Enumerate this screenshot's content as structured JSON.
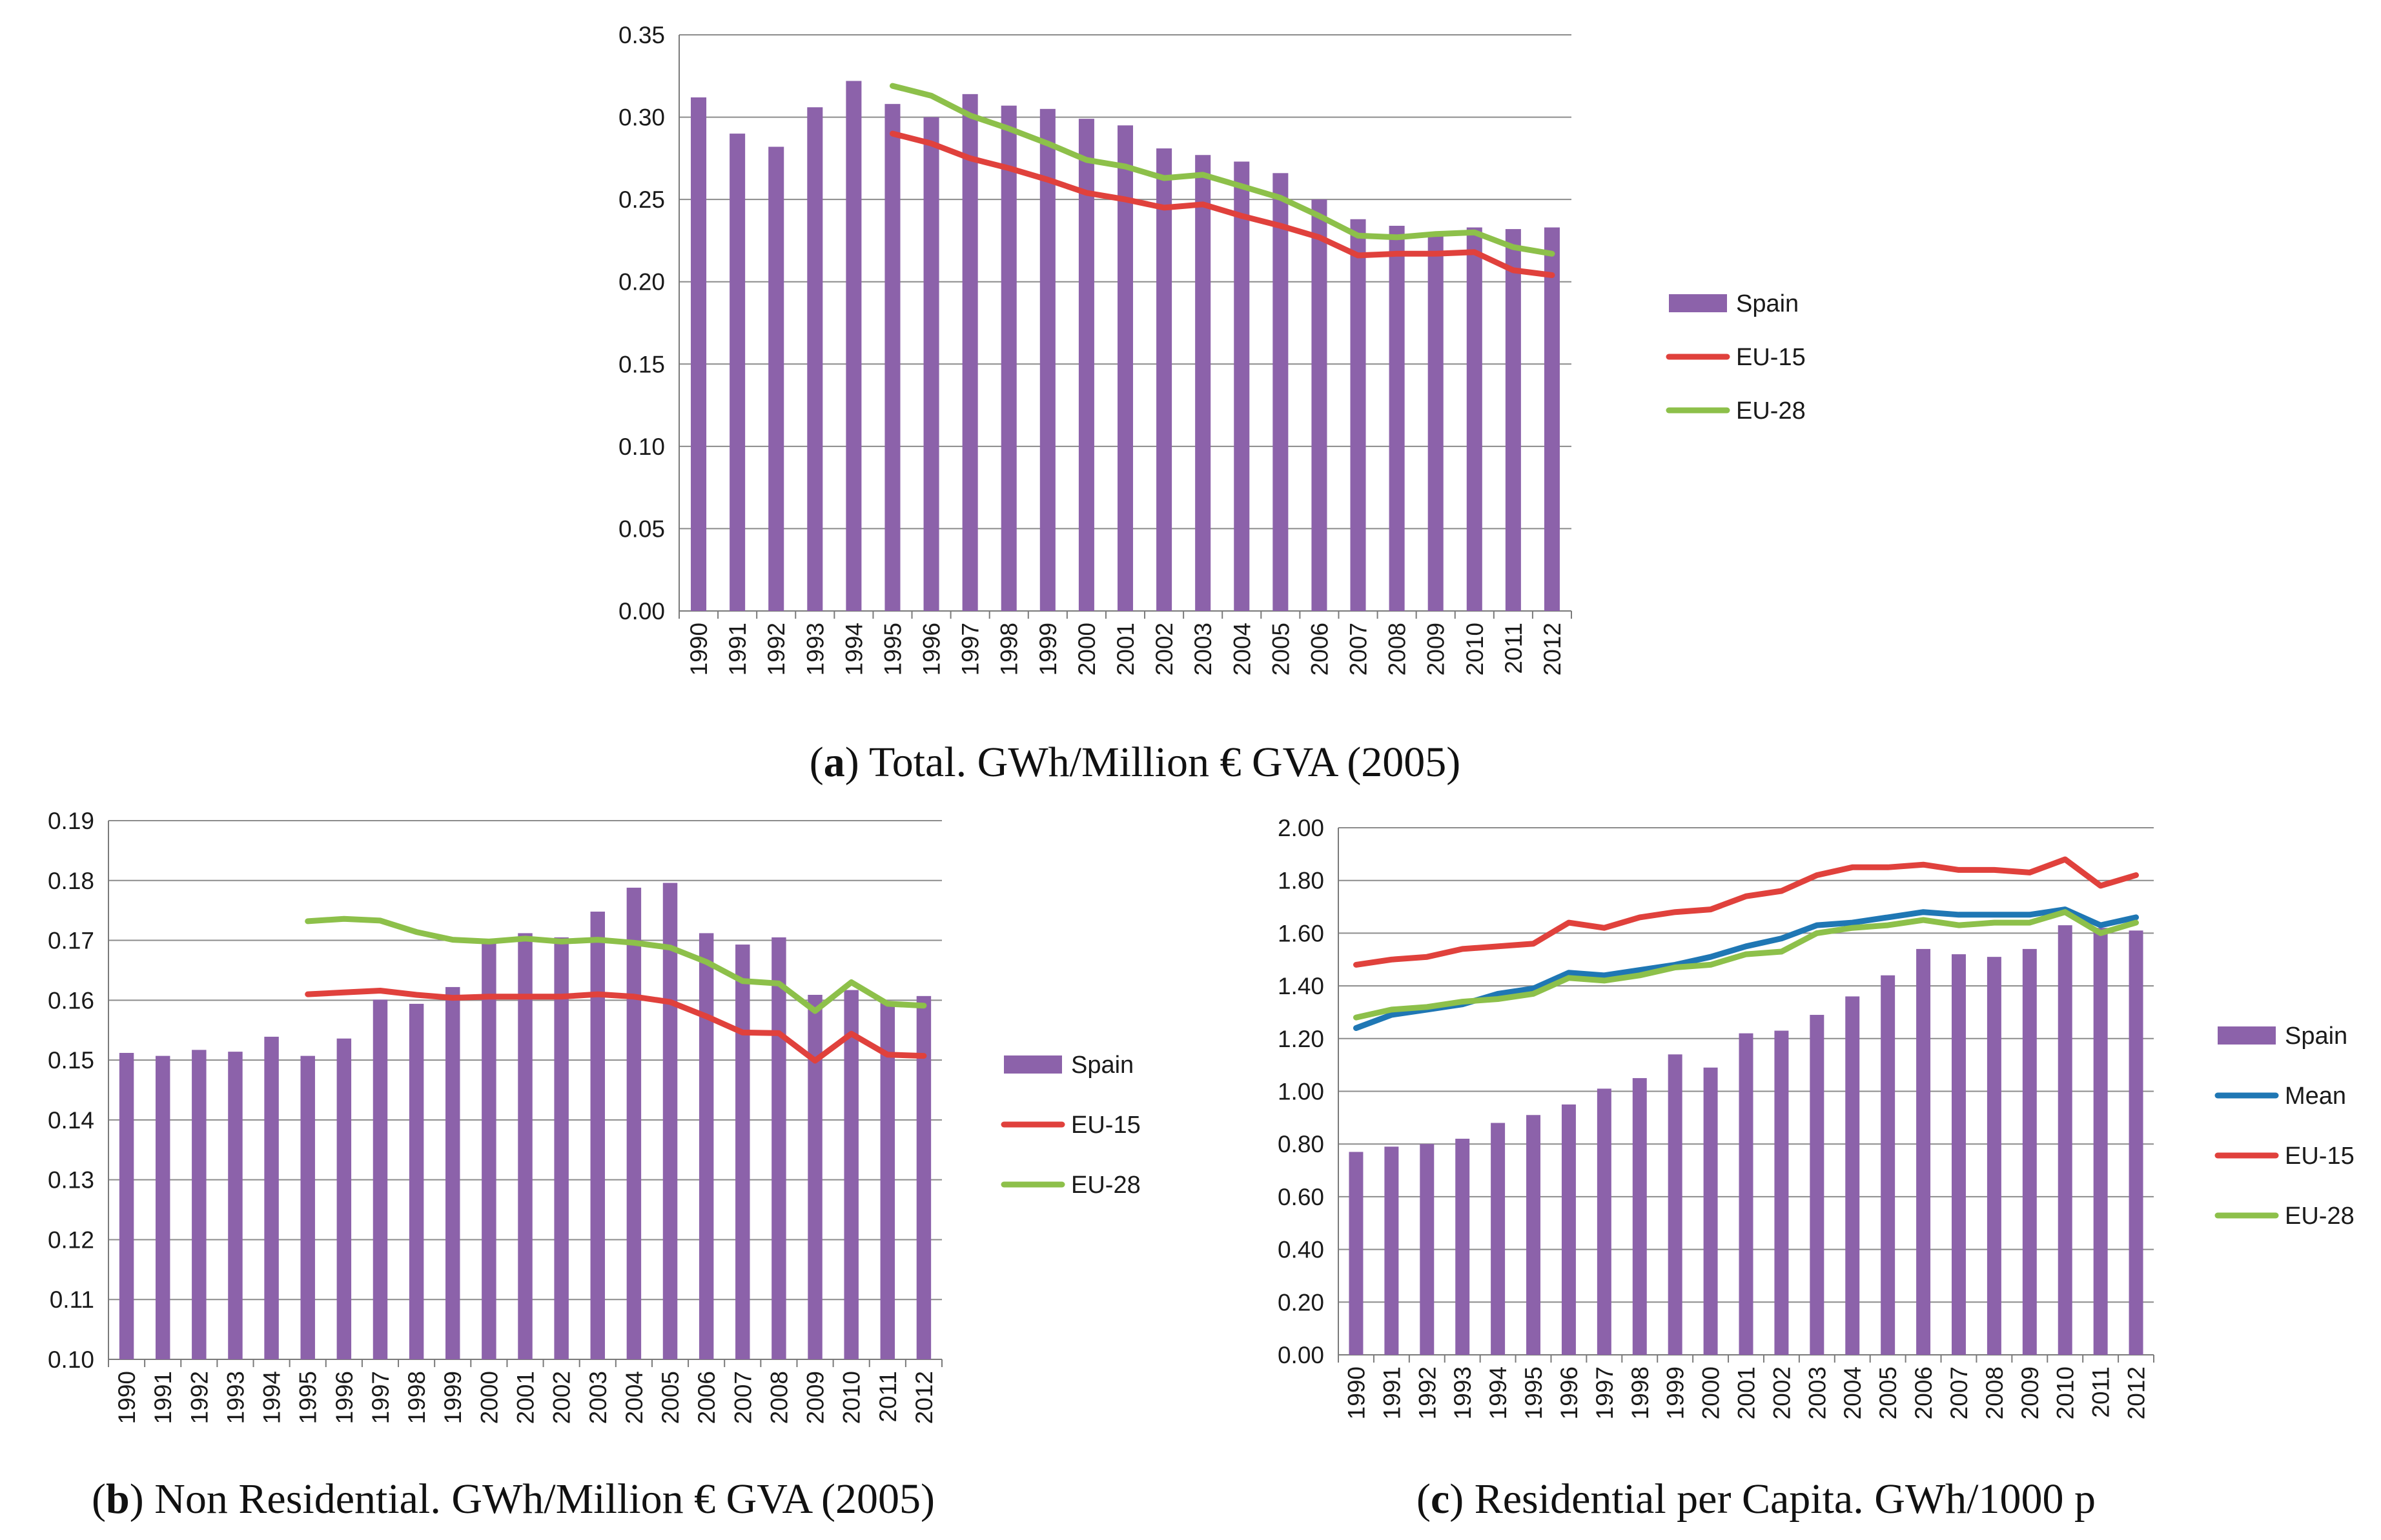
{
  "colors": {
    "spain": "#8c62aa",
    "eu15": "#e0413c",
    "eu28": "#8dc04a",
    "mean": "#1f77b4",
    "grid": "#8c8c8c"
  },
  "chart_data": [
    {
      "id": "a",
      "type": "bar+line",
      "caption_letter": "a",
      "caption_text": "Total. GWh/Million € GVA (2005)",
      "categories": [
        "1990",
        "1991",
        "1992",
        "1993",
        "1994",
        "1995",
        "1996",
        "1997",
        "1998",
        "1999",
        "2000",
        "2001",
        "2002",
        "2003",
        "2004",
        "2005",
        "2006",
        "2007",
        "2008",
        "2009",
        "2010",
        "2011",
        "2012"
      ],
      "ylim": [
        0,
        0.35
      ],
      "yticks": [
        "0.00",
        "0.05",
        "0.10",
        "0.15",
        "0.20",
        "0.25",
        "0.30",
        "0.35"
      ],
      "legend": [
        "Spain",
        "EU-15",
        "EU-28"
      ],
      "series": [
        {
          "name": "Spain",
          "kind": "bar",
          "color_key": "spain",
          "values": [
            0.312,
            0.29,
            0.282,
            0.306,
            0.322,
            0.308,
            0.3,
            0.314,
            0.307,
            0.305,
            0.299,
            0.295,
            0.281,
            0.277,
            0.273,
            0.266,
            0.25,
            0.238,
            0.234,
            0.23,
            0.233,
            0.232,
            0.233
          ]
        },
        {
          "name": "EU-15",
          "kind": "line",
          "color_key": "eu15",
          "values": [
            null,
            null,
            null,
            null,
            null,
            0.29,
            0.284,
            0.275,
            0.269,
            0.262,
            0.254,
            0.25,
            0.245,
            0.247,
            0.24,
            0.234,
            0.227,
            0.216,
            0.217,
            0.217,
            0.218,
            0.207,
            0.204
          ]
        },
        {
          "name": "EU-28",
          "kind": "line",
          "color_key": "eu28",
          "values": [
            null,
            null,
            null,
            null,
            null,
            0.319,
            0.313,
            0.301,
            0.293,
            0.284,
            0.274,
            0.27,
            0.263,
            0.265,
            0.258,
            0.251,
            0.24,
            0.228,
            0.227,
            0.229,
            0.23,
            0.221,
            0.217
          ]
        }
      ]
    },
    {
      "id": "b",
      "type": "bar+line",
      "caption_letter": "b",
      "caption_text": "Non Residential. GWh/Million € GVA (2005)",
      "categories": [
        "1990",
        "1991",
        "1992",
        "1993",
        "1994",
        "1995",
        "1996",
        "1997",
        "1998",
        "1999",
        "2000",
        "2001",
        "2002",
        "2003",
        "2004",
        "2005",
        "2006",
        "2007",
        "2008",
        "2009",
        "2010",
        "2011",
        "2012"
      ],
      "ylim": [
        0.1,
        0.19
      ],
      "yticks": [
        "0.10",
        "0.11",
        "0.12",
        "0.13",
        "0.14",
        "0.15",
        "0.16",
        "0.17",
        "0.18",
        "0.19"
      ],
      "legend": [
        "Spain",
        "EU-15",
        "EU-28"
      ],
      "series": [
        {
          "name": "Spain",
          "kind": "bar",
          "color_key": "spain",
          "values": [
            0.1512,
            0.1507,
            0.1517,
            0.1514,
            0.1539,
            0.1507,
            0.1536,
            0.1601,
            0.1594,
            0.1622,
            0.17,
            0.1712,
            0.1705,
            0.1748,
            0.1788,
            0.1796,
            0.1712,
            0.1693,
            0.1705,
            0.1609,
            0.1617,
            0.1597,
            0.1607
          ]
        },
        {
          "name": "EU-15",
          "kind": "line",
          "color_key": "eu15",
          "values": [
            null,
            null,
            null,
            null,
            null,
            0.161,
            0.1613,
            0.1616,
            0.1609,
            0.1604,
            0.1606,
            0.1606,
            0.1606,
            0.161,
            0.1606,
            0.1597,
            0.1573,
            0.1546,
            0.1545,
            0.1499,
            0.1544,
            0.1509,
            0.1507
          ]
        },
        {
          "name": "EU-28",
          "kind": "line",
          "color_key": "eu28",
          "values": [
            null,
            null,
            null,
            null,
            null,
            0.1732,
            0.1736,
            0.1733,
            0.1714,
            0.1701,
            0.1698,
            0.1703,
            0.1698,
            0.1701,
            0.1696,
            0.1688,
            0.1664,
            0.1632,
            0.1628,
            0.1582,
            0.163,
            0.1594,
            0.1591
          ]
        }
      ]
    },
    {
      "id": "c",
      "type": "bar+line",
      "caption_letter": "c",
      "caption_text": "Residential per Capita. GWh/1000 p",
      "categories": [
        "1990",
        "1991",
        "1992",
        "1993",
        "1994",
        "1995",
        "1996",
        "1997",
        "1998",
        "1999",
        "2000",
        "2001",
        "2002",
        "2003",
        "2004",
        "2005",
        "2006",
        "2007",
        "2008",
        "2009",
        "2010",
        "2011",
        "2012"
      ],
      "ylim": [
        0,
        2.0
      ],
      "yticks": [
        "0.00",
        "0.20",
        "0.40",
        "0.60",
        "0.80",
        "1.00",
        "1.20",
        "1.40",
        "1.60",
        "1.80",
        "2.00"
      ],
      "legend": [
        "Spain",
        "Mean",
        "EU-15",
        "EU-28"
      ],
      "series": [
        {
          "name": "Spain",
          "kind": "bar",
          "color_key": "spain",
          "values": [
            0.77,
            0.79,
            0.8,
            0.82,
            0.88,
            0.91,
            0.95,
            1.01,
            1.05,
            1.14,
            1.09,
            1.22,
            1.23,
            1.29,
            1.36,
            1.44,
            1.54,
            1.52,
            1.51,
            1.54,
            1.63,
            1.62,
            1.61
          ]
        },
        {
          "name": "Mean",
          "kind": "line",
          "color_key": "mean",
          "values": [
            1.24,
            1.29,
            1.31,
            1.33,
            1.37,
            1.39,
            1.45,
            1.44,
            1.46,
            1.48,
            1.51,
            1.55,
            1.58,
            1.63,
            1.64,
            1.66,
            1.68,
            1.67,
            1.67,
            1.67,
            1.69,
            1.63,
            1.66
          ]
        },
        {
          "name": "EU-15",
          "kind": "line",
          "color_key": "eu15",
          "values": [
            1.48,
            1.5,
            1.51,
            1.54,
            1.55,
            1.56,
            1.64,
            1.62,
            1.66,
            1.68,
            1.69,
            1.74,
            1.76,
            1.82,
            1.85,
            1.85,
            1.86,
            1.84,
            1.84,
            1.83,
            1.88,
            1.78,
            1.82
          ]
        },
        {
          "name": "EU-28",
          "kind": "line",
          "color_key": "eu28",
          "values": [
            1.28,
            1.31,
            1.32,
            1.34,
            1.35,
            1.37,
            1.43,
            1.42,
            1.44,
            1.47,
            1.48,
            1.52,
            1.53,
            1.6,
            1.62,
            1.63,
            1.65,
            1.63,
            1.64,
            1.64,
            1.68,
            1.6,
            1.64
          ]
        }
      ]
    }
  ]
}
